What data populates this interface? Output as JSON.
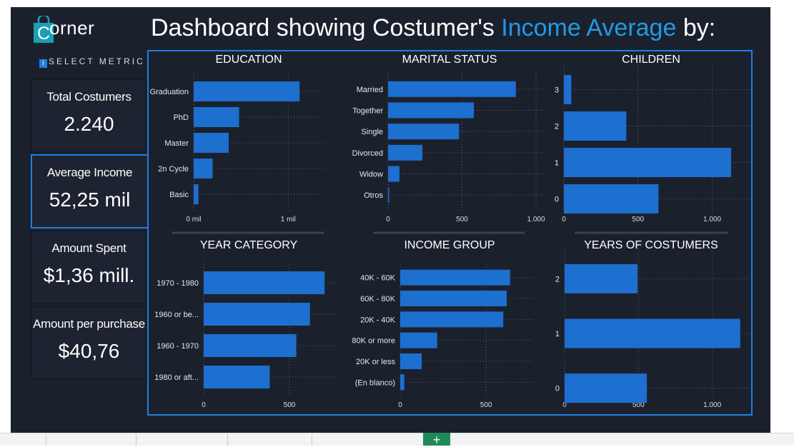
{
  "header": {
    "logo_text": "orner",
    "logo_letter": "C",
    "title_prefix": "Dashboard showing Costumer's ",
    "title_highlight": "Income Average",
    "title_suffix": " by:"
  },
  "select_metric": {
    "label": "SELECT METRIC",
    "icon": "info-icon"
  },
  "kpis": [
    {
      "label": "Total Costumers",
      "value": "2.240"
    },
    {
      "label": "Average Income",
      "value": "52,25 mil"
    },
    {
      "label": "Amount Spent",
      "value": "$1,36 mill."
    },
    {
      "label": "Amount per purchase",
      "value": "$40,76"
    }
  ],
  "colors": {
    "bar": "#1d6fd0",
    "accent": "#1e9be8",
    "panel_border": "#1e7fe0",
    "background": "#1b212c"
  },
  "chart_data": [
    {
      "type": "bar",
      "orientation": "horizontal",
      "title": "EDUCATION",
      "categories": [
        "Graduation",
        "PhD",
        "Master",
        "2n Cycle",
        "Basic"
      ],
      "values": [
        1.12,
        0.48,
        0.37,
        0.2,
        0.05
      ],
      "xlim": [
        0,
        1.3
      ],
      "ticks": [
        {
          "v": 0,
          "label": "0 mil"
        },
        {
          "v": 1,
          "label": "1 mil"
        }
      ],
      "grid": true
    },
    {
      "type": "bar",
      "orientation": "horizontal",
      "title": "MARITAL STATUS",
      "categories": [
        "Married",
        "Together",
        "Single",
        "Divorced",
        "Widow",
        "Otros"
      ],
      "values": [
        864,
        580,
        480,
        232,
        77,
        7
      ],
      "xlim": [
        0,
        1000
      ],
      "ticks": [
        {
          "v": 0,
          "label": "0"
        },
        {
          "v": 500,
          "label": "500"
        },
        {
          "v": 1000,
          "label": "1.000"
        }
      ],
      "grid": true
    },
    {
      "type": "bar",
      "orientation": "horizontal",
      "title": "CHILDREN",
      "categories": [
        "3",
        "2",
        "1",
        "0"
      ],
      "values": [
        50,
        421,
        1128,
        638
      ],
      "xlim": [
        0,
        1200
      ],
      "ticks": [
        {
          "v": 0,
          "label": "0"
        },
        {
          "v": 500,
          "label": "500"
        },
        {
          "v": 1000,
          "label": "1.000"
        }
      ],
      "grid": true
    },
    {
      "type": "bar",
      "orientation": "horizontal",
      "title": "YEAR CATEGORY",
      "categories": [
        "1970 - 1980",
        "1960 or be...",
        "1960 - 1970",
        "1980 or aft..."
      ],
      "values": [
        705,
        620,
        540,
        385
      ],
      "xlim": [
        0,
        750
      ],
      "ticks": [
        {
          "v": 0,
          "label": "0"
        },
        {
          "v": 500,
          "label": "500"
        }
      ],
      "grid": true
    },
    {
      "type": "bar",
      "orientation": "horizontal",
      "title": "INCOME GROUP",
      "categories": [
        "40K - 60K",
        "60K - 80K",
        "20K - 40K",
        "80K or more",
        "20K or less",
        "(En blanco)"
      ],
      "values": [
        640,
        620,
        600,
        215,
        125,
        24
      ],
      "xlim": [
        0,
        720
      ],
      "ticks": [
        {
          "v": 0,
          "label": "0"
        },
        {
          "v": 500,
          "label": "500"
        }
      ],
      "grid": true
    },
    {
      "type": "bar",
      "orientation": "horizontal",
      "title": "YEARS OF COSTUMERS",
      "categories": [
        "2",
        "1",
        "0"
      ],
      "values": [
        494,
        1189,
        557
      ],
      "xlim": [
        0,
        1200
      ],
      "ticks": [
        {
          "v": 0,
          "label": "0"
        },
        {
          "v": 500,
          "label": "500"
        },
        {
          "v": 1000,
          "label": "1.000"
        }
      ],
      "grid": true
    }
  ]
}
